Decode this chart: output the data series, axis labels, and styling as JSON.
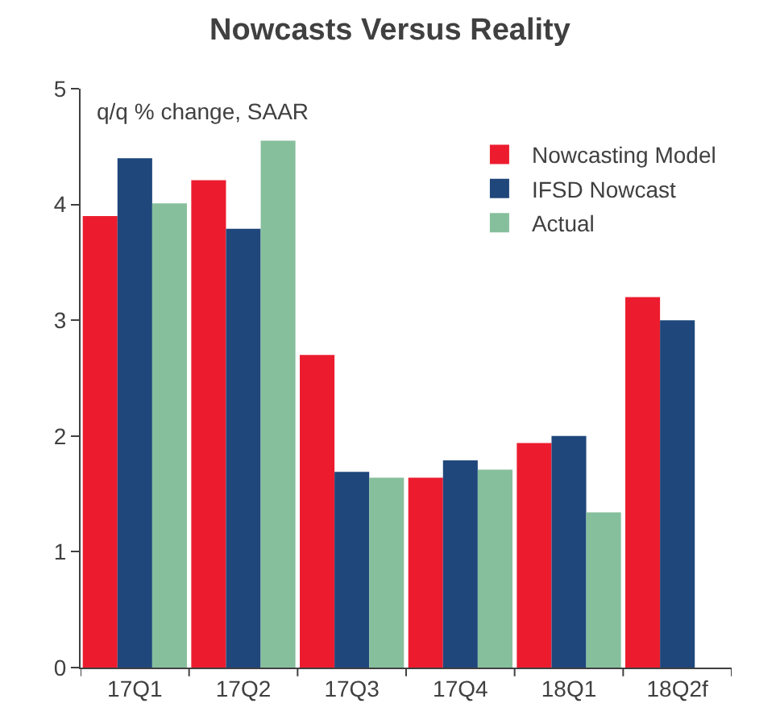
{
  "chart_data": {
    "type": "bar",
    "title": "Nowcasts Versus Reality",
    "annotations": [
      "q/q % change, SAAR"
    ],
    "categories": [
      "17Q1",
      "17Q2",
      "17Q3",
      "17Q4",
      "18Q1",
      "18Q2f"
    ],
    "series": [
      {
        "name": "Nowcasting Model",
        "color": "#ec1c2e",
        "values": [
          3.9,
          4.21,
          2.7,
          1.64,
          1.94,
          3.2
        ]
      },
      {
        "name": "IFSD Nowcast",
        "color": "#1f477b",
        "values": [
          4.4,
          3.79,
          1.69,
          1.79,
          2.0,
          3.0
        ]
      },
      {
        "name": "Actual",
        "color": "#86bf9c",
        "values": [
          4.01,
          4.55,
          1.64,
          1.71,
          1.34,
          null
        ]
      }
    ],
    "ylim": [
      0,
      5
    ],
    "yticks": [
      0,
      1,
      2,
      3,
      4,
      5
    ],
    "legend": "top right"
  }
}
